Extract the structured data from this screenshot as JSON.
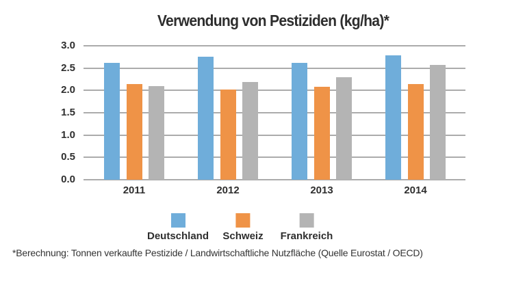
{
  "title": "Verwendung von Pestiziden (kg/ha)*",
  "footnote": "*Berechnung: Tonnen verkaufte Pestizide / Landwirtschaftliche Nutzfläche (Quelle Eurostat / OECD)",
  "colors": {
    "deutschland": "#6fadda",
    "schweiz": "#ef9347",
    "frankreich": "#b4b4b4",
    "gridline": "#ababab",
    "text": "#2e2e2e"
  },
  "chart_data": {
    "type": "bar",
    "title": "Verwendung von Pestiziden (kg/ha)*",
    "categories": [
      "2011",
      "2012",
      "2013",
      "2014"
    ],
    "series": [
      {
        "name": "Deutschland",
        "color": "#6fadda",
        "values": [
          2.62,
          2.75,
          2.62,
          2.79
        ]
      },
      {
        "name": "Schweiz",
        "color": "#ef9347",
        "values": [
          2.14,
          2.02,
          2.08,
          2.14
        ]
      },
      {
        "name": "Frankreich",
        "color": "#b4b4b4",
        "values": [
          2.1,
          2.19,
          2.29,
          2.57
        ]
      }
    ],
    "xlabel": "",
    "ylabel": "",
    "ylim": [
      0,
      3.0
    ],
    "ytick_labels": [
      "3.0",
      "2.5",
      "2.0",
      "1.5",
      "1.0",
      "0.5",
      "0.0"
    ],
    "grid": "horizontal",
    "legend_position": "bottom",
    "footnote": "*Berechnung: Tonnen verkaufte Pestizide / Landwirtschaftliche Nutzfläche (Quelle Eurostat / OECD)"
  }
}
